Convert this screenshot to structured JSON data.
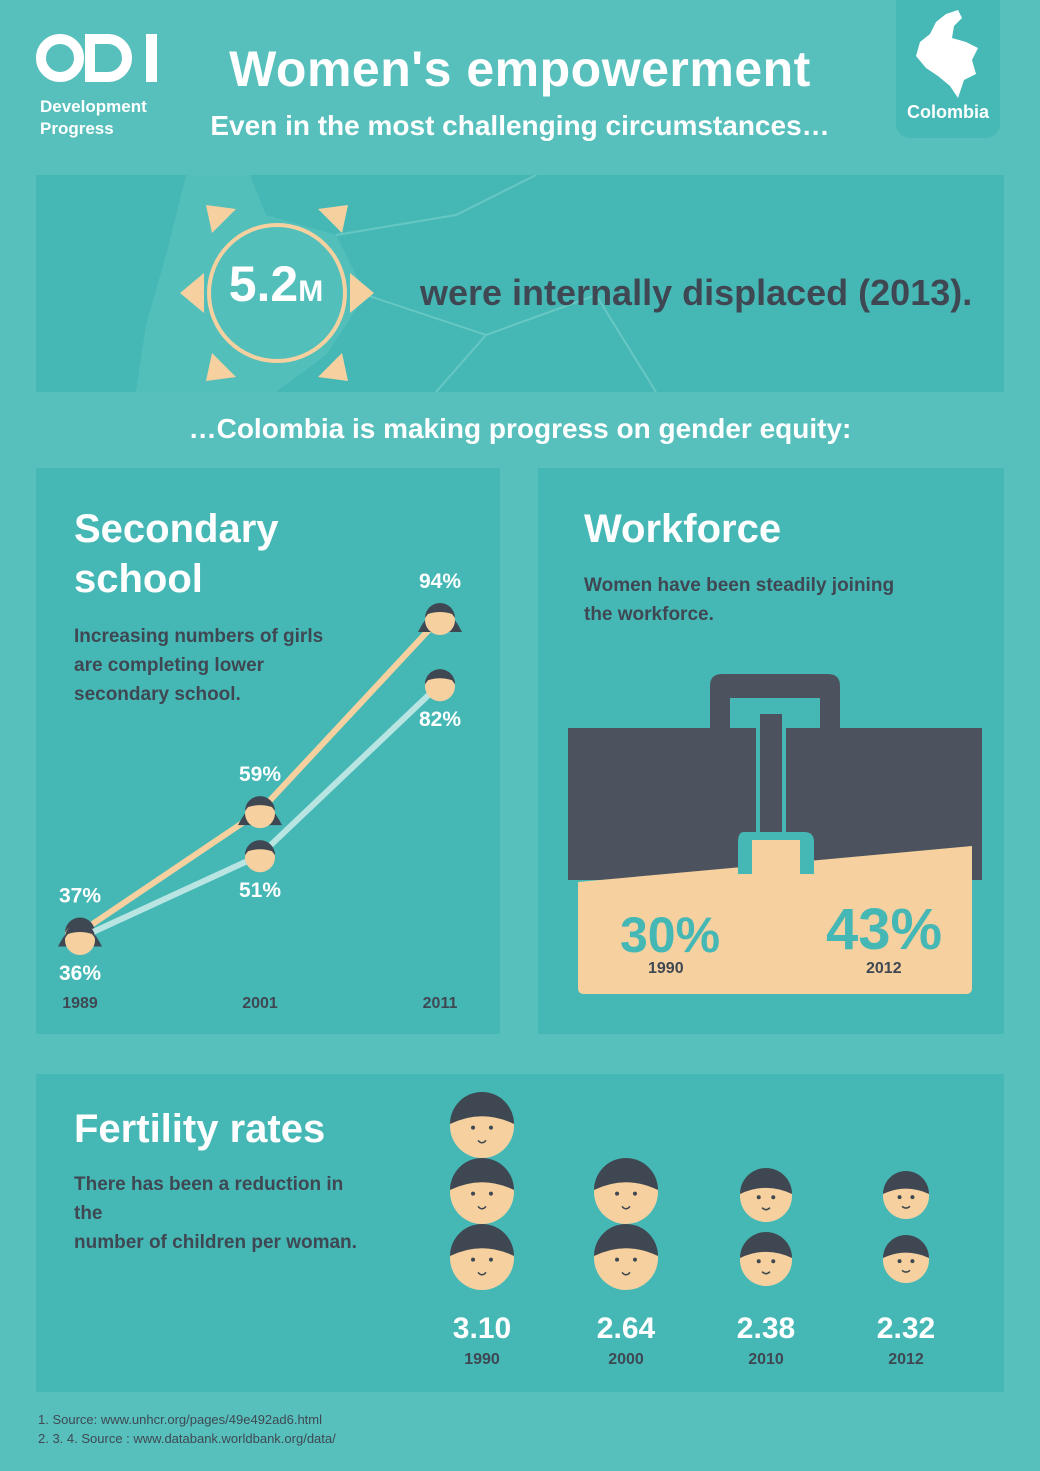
{
  "header": {
    "logo_text": "ODI",
    "logo_sub_1": "Development",
    "logo_sub_2": "Progress",
    "title": "Women's empowerment",
    "subtitle": "Even in the most challenging circumstances…",
    "country": "Colombia"
  },
  "displaced": {
    "number": "5.2",
    "unit": "M",
    "text": "were internally displaced (2013)."
  },
  "progress_text": "…Colombia is making progress on gender equity:",
  "secondary_school": {
    "title_1": "Secondary",
    "title_2": "school",
    "desc_1": "Increasing numbers of girls",
    "desc_2": "are completing lower",
    "desc_3": "secondary school."
  },
  "workforce": {
    "title": "Workforce",
    "desc_1": "Women have been steadily joining",
    "desc_2": "the workforce.",
    "values": [
      {
        "value": "30%",
        "year": "1990"
      },
      {
        "value": "43%",
        "year": "2012"
      }
    ]
  },
  "fertility": {
    "title": "Fertility rates",
    "desc_1": "There has been a reduction in the",
    "desc_2": "number of children per woman."
  },
  "chart_data": [
    {
      "type": "line",
      "x": [
        "1989",
        "2001",
        "2011"
      ],
      "series": [
        {
          "values": [
            37,
            59,
            94
          ],
          "labels": [
            "37%",
            "59%",
            "94%"
          ],
          "color": "#f6d19f"
        },
        {
          "values": [
            36,
            51,
            82
          ],
          "labels": [
            "36%",
            "51%",
            "82%"
          ],
          "color": "#b8e4e2"
        }
      ]
    },
    {
      "type": "bar",
      "categories": [
        "1990",
        "2000",
        "2010",
        "2012"
      ],
      "values": [
        3.1,
        2.64,
        2.38,
        2.32
      ],
      "labels": [
        "3.10",
        "2.64",
        "2.38",
        "2.32"
      ]
    }
  ],
  "footnotes": {
    "line_1": "1. Source: www.unhcr.org/pages/49e492ad6.html",
    "line_2": "2. 3. 4. Source : www.databank.worldbank.org/data/"
  },
  "colors": {
    "background": "#57c0bc",
    "panel": "#45b8b6",
    "dark": "#3f4852",
    "peach": "#f6d19f",
    "light_line": "#b8e4e2"
  }
}
